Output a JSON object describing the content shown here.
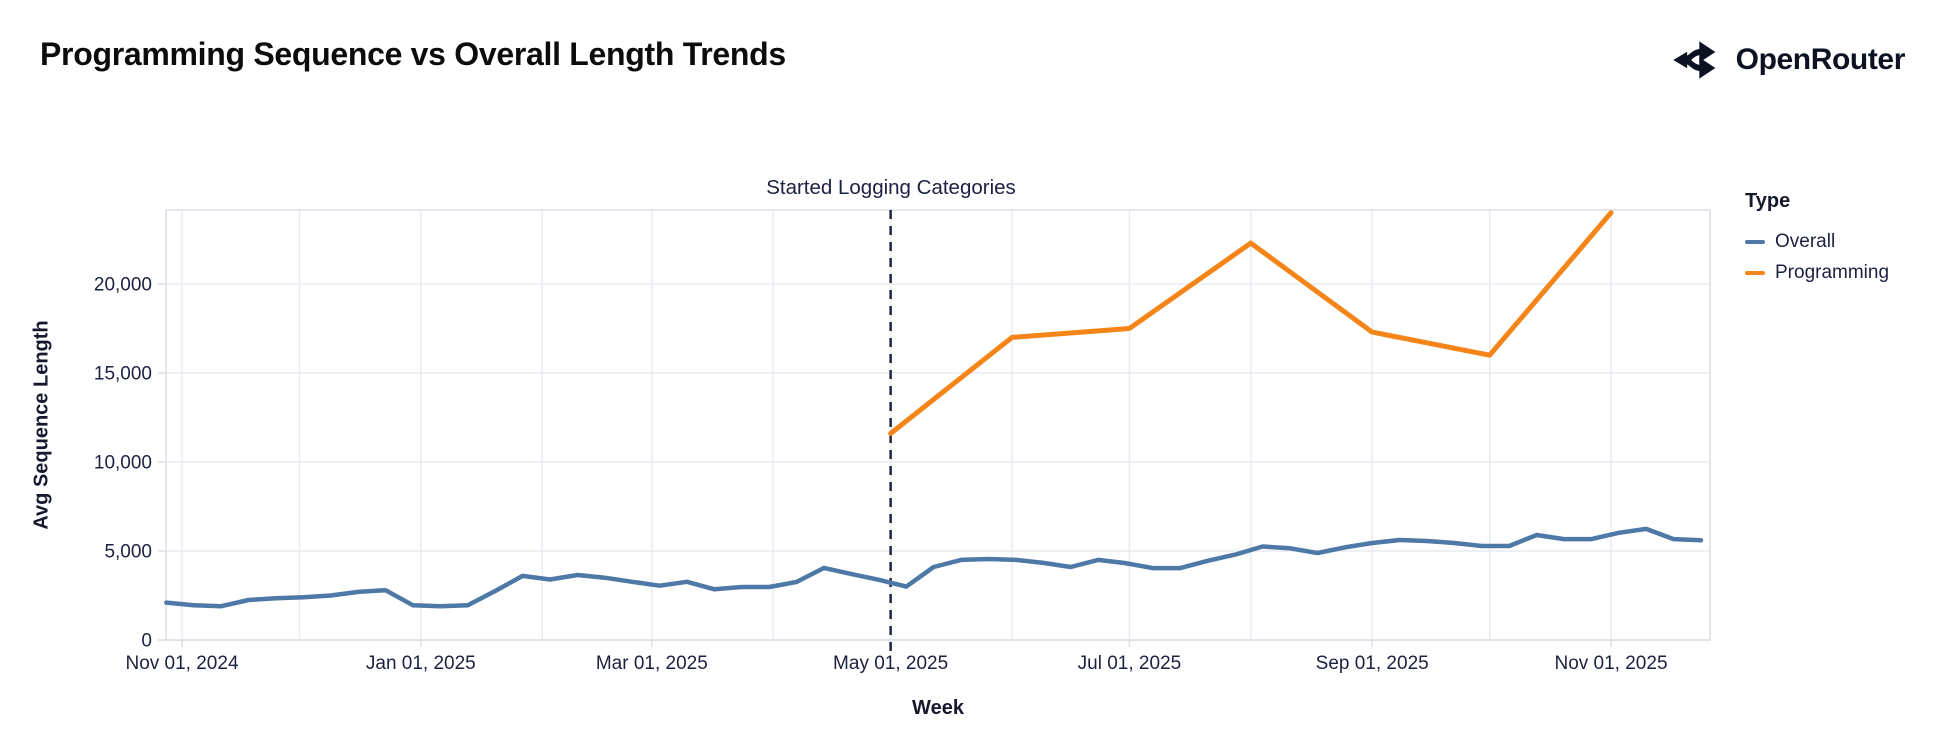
{
  "header": {
    "title": "Programming Sequence vs Overall Length Trends",
    "brand": "OpenRouter"
  },
  "legend": {
    "title": "Type",
    "items": [
      {
        "label": "Overall",
        "color": "#4e79a7"
      },
      {
        "label": "Programming",
        "color": "#f58518"
      }
    ]
  },
  "chart_data": {
    "type": "line",
    "title": "Programming Sequence vs Overall Length Trends",
    "xlabel": "Week",
    "ylabel": "Avg Sequence Length",
    "ylim": [
      0,
      24200
    ],
    "grid": true,
    "legend_position": "right",
    "x_ticks": [
      {
        "date": "2024-11-01",
        "label": "Nov 01, 2024"
      },
      {
        "date": "2025-01-01",
        "label": "Jan 01, 2025"
      },
      {
        "date": "2025-03-01",
        "label": "Mar 01, 2025"
      },
      {
        "date": "2025-05-01",
        "label": "May 01, 2025"
      },
      {
        "date": "2025-07-01",
        "label": "Jul 01, 2025"
      },
      {
        "date": "2025-09-01",
        "label": "Sep 01, 2025"
      },
      {
        "date": "2025-11-01",
        "label": "Nov 01, 2025"
      }
    ],
    "y_ticks": [
      {
        "value": 0,
        "label": "0"
      },
      {
        "value": 5000,
        "label": "5,000"
      },
      {
        "value": 10000,
        "label": "10,000"
      },
      {
        "value": 15000,
        "label": "15,000"
      },
      {
        "value": 20000,
        "label": "20,000"
      }
    ],
    "annotation": {
      "text": "Started Logging Categories",
      "date": "2025-05-01"
    },
    "series": [
      {
        "name": "Overall",
        "color": "#4e79a7",
        "dates": [
          "2024-10-28",
          "2024-11-04",
          "2024-11-11",
          "2024-11-18",
          "2024-11-25",
          "2024-12-02",
          "2024-12-09",
          "2024-12-16",
          "2024-12-23",
          "2024-12-30",
          "2025-01-06",
          "2025-01-13",
          "2025-01-20",
          "2025-01-27",
          "2025-02-03",
          "2025-02-10",
          "2025-02-17",
          "2025-02-24",
          "2025-03-03",
          "2025-03-10",
          "2025-03-17",
          "2025-03-24",
          "2025-03-31",
          "2025-04-07",
          "2025-04-14",
          "2025-04-21",
          "2025-04-28",
          "2025-05-05",
          "2025-05-12",
          "2025-05-19",
          "2025-05-26",
          "2025-06-02",
          "2025-06-09",
          "2025-06-16",
          "2025-06-23",
          "2025-06-30",
          "2025-07-07",
          "2025-07-14",
          "2025-07-21",
          "2025-07-28",
          "2025-08-04",
          "2025-08-11",
          "2025-08-18",
          "2025-08-25",
          "2025-09-01",
          "2025-09-08",
          "2025-09-15",
          "2025-09-22",
          "2025-09-29",
          "2025-10-06",
          "2025-10-13",
          "2025-10-20",
          "2025-10-27",
          "2025-11-03",
          "2025-11-10",
          "2025-11-17",
          "2025-11-24"
        ],
        "values": [
          2100,
          1950,
          1900,
          2250,
          2350,
          2400,
          2500,
          2700,
          2800,
          1950,
          1900,
          1950,
          2750,
          3600,
          3400,
          3650,
          3500,
          3270,
          3050,
          3270,
          2850,
          2980,
          2980,
          3265,
          4050,
          3700,
          3380,
          3000,
          4100,
          4500,
          4550,
          4500,
          4330,
          4100,
          4500,
          4320,
          4040,
          4040,
          4450,
          4800,
          5250,
          5150,
          4890,
          5200,
          5450,
          5620,
          5560,
          5450,
          5280,
          5280,
          5900,
          5670,
          5670,
          6020,
          6240,
          5670,
          5600
        ]
      },
      {
        "name": "Programming",
        "color": "#f58518",
        "dates": [
          "2025-05-01",
          "2025-06-01",
          "2025-07-01",
          "2025-08-01",
          "2025-09-01",
          "2025-10-01",
          "2025-11-01"
        ],
        "values": [
          11600,
          17000,
          17500,
          22300,
          17300,
          16000,
          24000
        ]
      }
    ]
  },
  "style": {
    "grid_color": "#e9ebf2",
    "frame_color": "#dcdfe8",
    "tick_text_color": "#1b2140",
    "annotation_line_color": "#20263f"
  }
}
